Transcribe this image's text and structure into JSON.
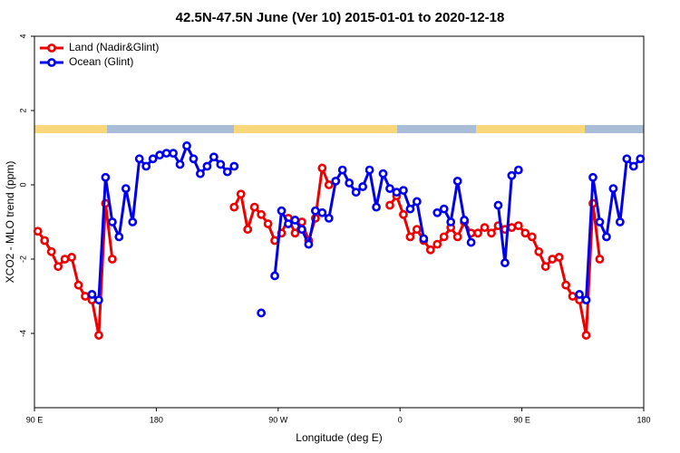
{
  "chart_data": {
    "type": "line",
    "title": "42.5N-47.5N June (Ver 10)   2015-01-01 to 2020-12-18",
    "xlabel": "Longitude (deg E)",
    "ylabel": "XCO2 - MLO trend (ppm)",
    "legend": "topleft",
    "xlim": [
      90,
      540
    ],
    "ylim": [
      -6,
      4
    ],
    "xticks": [
      {
        "value": 90,
        "label": "90 E"
      },
      180,
      {
        "value": 270,
        "label": "90 W"
      },
      {
        "value": 360,
        "label": "0"
      },
      {
        "value": 450,
        "label": "90 E"
      },
      {
        "value": 540,
        "label": "180"
      }
    ],
    "yticks": [
      4,
      2,
      0,
      -2,
      -4
    ],
    "x": [
      92.5,
      97.5,
      102.5,
      107.5,
      112.5,
      117.5,
      122.5,
      127.5,
      132.5,
      137.5,
      142.5,
      147.5,
      152.5,
      157.5,
      162.5,
      167.5,
      172.5,
      177.5,
      182.5,
      187.5,
      192.5,
      197.5,
      202.5,
      207.5,
      212.5,
      217.5,
      222.5,
      227.5,
      232.5,
      237.5,
      242.5,
      247.5,
      252.5,
      257.5,
      262.5,
      267.5,
      272.5,
      277.5,
      282.5,
      287.5,
      292.5,
      297.5,
      302.5,
      307.5,
      312.5,
      317.5,
      322.5,
      327.5,
      332.5,
      337.5,
      342.5,
      347.5,
      352.5,
      357.5,
      362.5,
      367.5,
      372.5,
      377.5,
      382.5,
      387.5,
      392.5,
      397.5,
      402.5,
      407.5,
      412.5,
      417.5,
      422.5,
      427.5,
      432.5,
      437.5,
      442.5,
      447.5,
      452.5,
      457.5,
      462.5,
      467.5,
      472.5,
      477.5,
      482.5,
      487.5,
      492.5,
      497.5,
      502.5,
      507.5,
      512.5,
      517.5,
      522.5,
      527.5,
      532.5,
      537.5
    ],
    "series": [
      {
        "name": "Land (Nadir&Glint)",
        "color": "#ee0000",
        "values": [
          -1.25,
          -1.5,
          -1.8,
          -2.2,
          -2.0,
          -1.95,
          -2.7,
          -3.0,
          -3.1,
          -4.05,
          -0.5,
          -2.0,
          null,
          null,
          null,
          null,
          null,
          null,
          null,
          null,
          null,
          null,
          null,
          null,
          null,
          null,
          null,
          null,
          null,
          -0.6,
          -0.25,
          -1.2,
          -0.6,
          -0.8,
          -1.05,
          -1.5,
          -1.3,
          -0.9,
          -1.3,
          -1.0,
          -1.5,
          -0.9,
          0.45,
          0.0,
          null,
          null,
          null,
          null,
          null,
          null,
          null,
          null,
          -0.55,
          -0.3,
          -0.8,
          -1.4,
          -1.2,
          -1.5,
          -1.75,
          -1.6,
          -1.4,
          -1.15,
          -1.4,
          -1.0,
          -1.3,
          -1.3,
          -1.15,
          -1.3,
          -1.1,
          -1.2,
          -1.15,
          -1.1,
          -1.3,
          -1.4,
          -1.8,
          -2.2,
          -2.0,
          -1.95,
          -2.7,
          -3.0,
          -3.1,
          -4.05,
          -0.5,
          -2.0,
          null,
          null,
          null,
          null,
          null,
          null
        ]
      },
      {
        "name": "Ocean (Glint)",
        "color": "#0000ee",
        "values": [
          null,
          null,
          null,
          null,
          null,
          null,
          null,
          null,
          -2.95,
          -3.1,
          0.2,
          -1.0,
          -1.4,
          -0.1,
          -1.0,
          0.7,
          0.5,
          0.7,
          0.8,
          0.85,
          0.85,
          0.55,
          1.05,
          0.7,
          0.3,
          0.5,
          0.75,
          0.55,
          0.35,
          0.5,
          null,
          null,
          null,
          -3.45,
          null,
          -2.45,
          -0.7,
          -1.05,
          -0.95,
          -1.2,
          -1.6,
          -0.7,
          -0.75,
          -0.9,
          0.1,
          0.4,
          0.05,
          -0.2,
          -0.05,
          0.4,
          -0.6,
          0.3,
          -0.1,
          -0.2,
          -0.15,
          -0.65,
          -0.45,
          -1.45,
          null,
          -0.75,
          -0.65,
          -1.0,
          0.1,
          -0.95,
          -1.55,
          null,
          null,
          null,
          -0.55,
          -2.1,
          0.25,
          0.4,
          null,
          null,
          null,
          null,
          null,
          null,
          null,
          null,
          -2.95,
          -3.1,
          0.2,
          -1.0,
          -1.4,
          -0.1,
          -1.0,
          0.7,
          0.5,
          0.7
        ]
      }
    ]
  }
}
